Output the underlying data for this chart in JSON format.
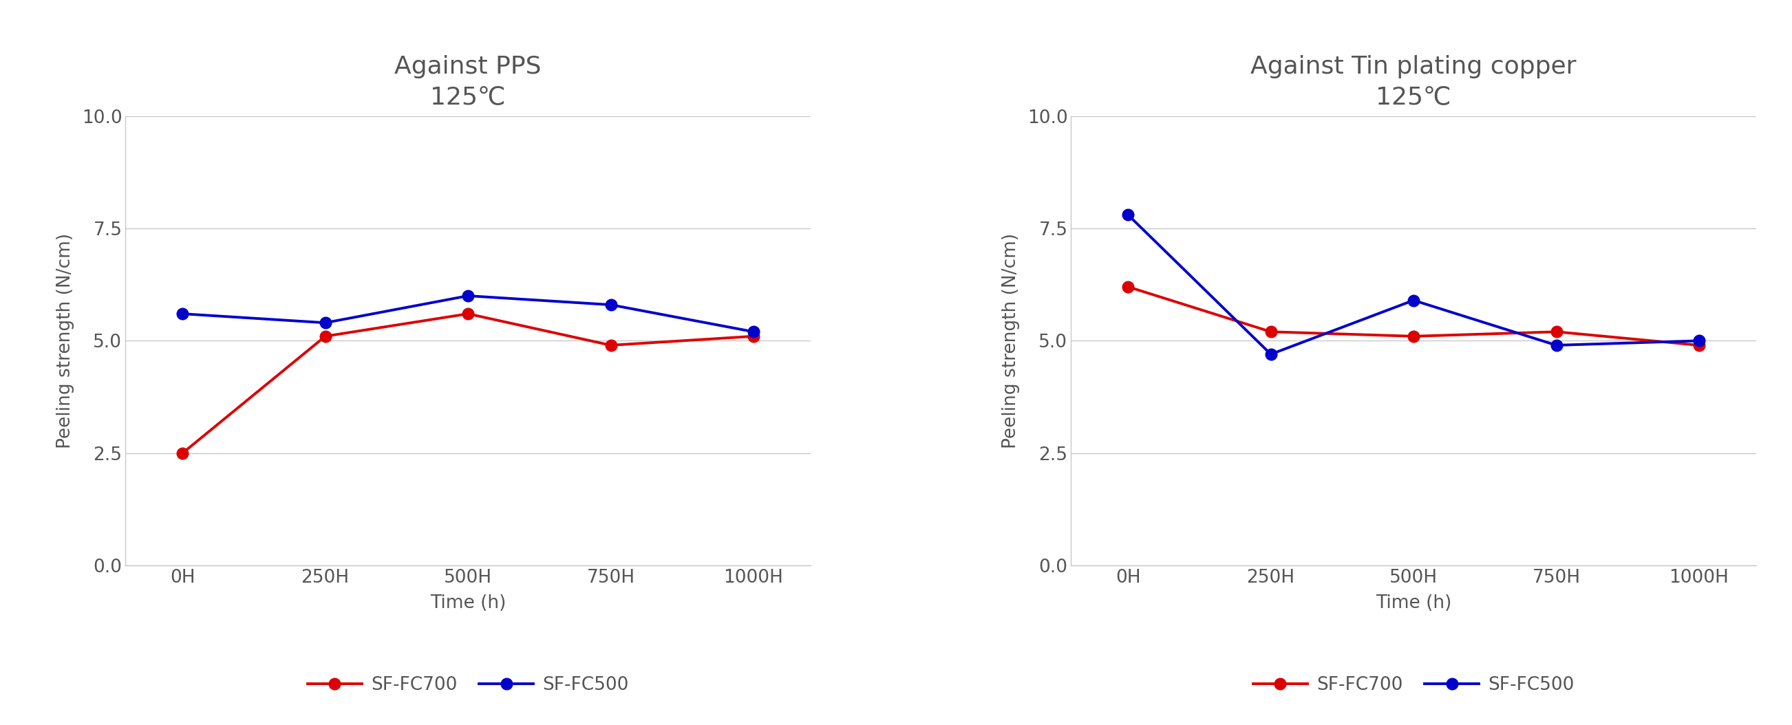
{
  "chart1": {
    "title": "Against PPS",
    "subtitle": "125℃",
    "xlabel": "Time (h)",
    "ylabel": "Peeling strength (N/cm)",
    "x_labels": [
      "0H",
      "250H",
      "500H",
      "750H",
      "1000H"
    ],
    "x_values": [
      0,
      1,
      2,
      3,
      4
    ],
    "series": [
      {
        "label": "SF-FC700",
        "color": "#dd0000",
        "values": [
          2.5,
          5.1,
          5.6,
          4.9,
          5.1
        ]
      },
      {
        "label": "SF-FC500",
        "color": "#0000cc",
        "values": [
          5.6,
          5.4,
          6.0,
          5.8,
          5.2
        ]
      }
    ],
    "ylim": [
      0.0,
      10.0
    ],
    "yticks": [
      0.0,
      2.5,
      5.0,
      7.5,
      10.0
    ],
    "ytick_labels": [
      "0.0",
      "2.5",
      "5.0",
      "7.5",
      "10.0"
    ]
  },
  "chart2": {
    "title": "Against Tin plating copper",
    "subtitle": "125℃",
    "xlabel": "Time (h)",
    "ylabel": "Peeling strength (N/cm)",
    "x_labels": [
      "0H",
      "250H",
      "500H",
      "750H",
      "1000H"
    ],
    "x_values": [
      0,
      1,
      2,
      3,
      4
    ],
    "series": [
      {
        "label": "SF-FC700",
        "color": "#dd0000",
        "values": [
          6.2,
          5.2,
          5.1,
          5.2,
          4.9
        ]
      },
      {
        "label": "SF-FC500",
        "color": "#0000cc",
        "values": [
          7.8,
          4.7,
          5.9,
          4.9,
          5.0
        ]
      }
    ],
    "ylim": [
      0.0,
      10.0
    ],
    "yticks": [
      0.0,
      2.5,
      5.0,
      7.5,
      10.0
    ],
    "ytick_labels": [
      "0.0",
      "2.5",
      "5.0",
      "7.5",
      "10.0"
    ]
  },
  "background_color": "#ffffff",
  "grid_color": "#c8c8c8",
  "text_color": "#555555",
  "title_fontsize": 26,
  "subtitle_fontsize": 23,
  "axis_label_fontsize": 19,
  "tick_fontsize": 19,
  "legend_fontsize": 19,
  "line_width": 2.8,
  "marker_size": 12
}
